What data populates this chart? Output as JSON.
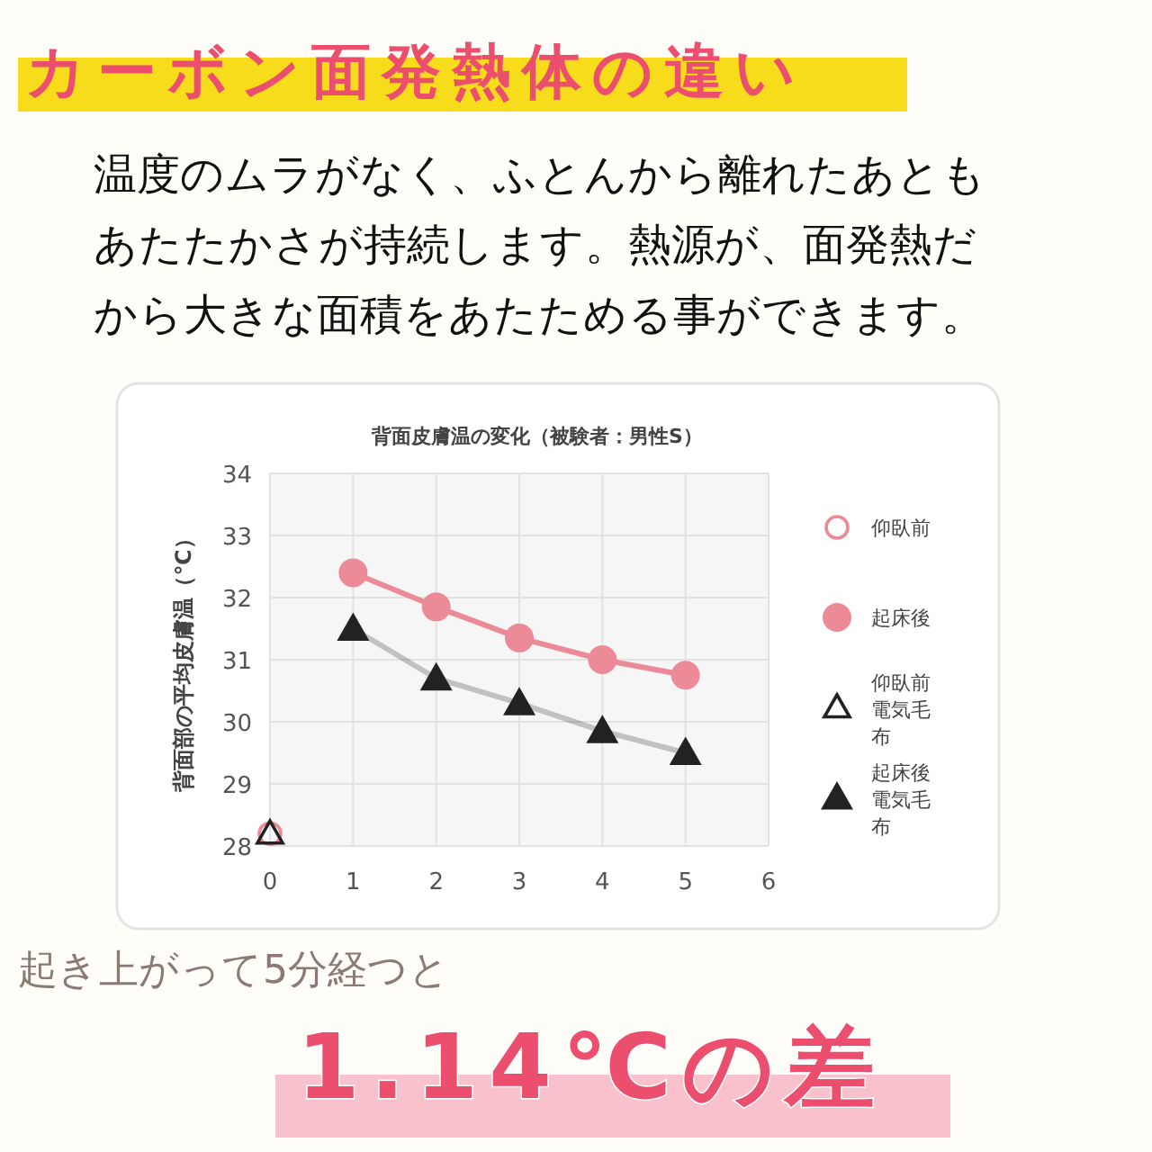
{
  "chart_data": {
    "type": "line",
    "title": "背面皮膚温の変化（被験者：男性S）",
    "ylabel": "背面部の平均皮膚温（℃）",
    "x": [
      1,
      2,
      3,
      4,
      5
    ],
    "series": [
      {
        "name": "仰臥前",
        "type": "scatter",
        "marker": "circle",
        "color": "#ec8a98",
        "x": [
          0
        ],
        "values": [
          28.2
        ]
      },
      {
        "name": "起床後",
        "type": "line",
        "marker": "circle",
        "color": "#ec8a98",
        "values": [
          32.4,
          31.85,
          31.35,
          31.0,
          30.75
        ]
      },
      {
        "name": "仰臥前電気毛布",
        "type": "scatter",
        "marker": "triangle",
        "color": "#222222",
        "x": [
          0
        ],
        "values": [
          28.2
        ]
      },
      {
        "name": "起床後電気毛布",
        "type": "line",
        "marker": "triangle",
        "color": "#222222",
        "values": [
          31.5,
          30.7,
          30.3,
          29.85,
          29.5
        ]
      }
    ],
    "xlim": [
      0,
      6
    ],
    "xticks": [
      0,
      1,
      2,
      3,
      4,
      5,
      6
    ],
    "ylim": [
      28,
      34
    ],
    "yticks": [
      28,
      29,
      30,
      31,
      32,
      33,
      34
    ],
    "grid": true,
    "legend": "right",
    "annotations": [
      "カーボン面発熱体の違い",
      "温度のムラがなく、ふとんから離れたあともあたたかさが持続します。熱源が、面発熱だから大きな面積をあたためる事ができます。",
      "起き上がって5分経つと",
      "1.14℃の差"
    ]
  }
}
